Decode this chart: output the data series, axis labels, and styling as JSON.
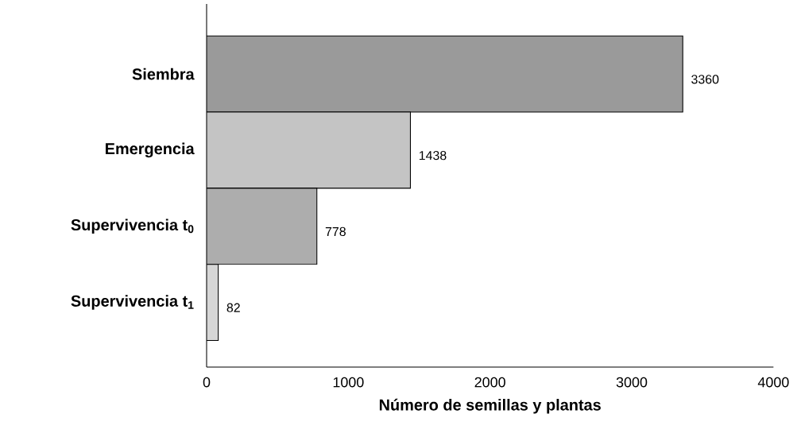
{
  "chart_data": {
    "type": "bar",
    "orientation": "horizontal",
    "xlabel": "Número de semillas y plantas",
    "categories": [
      "Siembra",
      "Emergencia",
      "Supervivencia t$_{0}$",
      "Supervivencia t$_{1}$"
    ],
    "values": [
      3360,
      1438,
      778,
      82
    ],
    "colors": [
      "#9a9a9a",
      "#c4c4c4",
      "#adadad",
      "#d6d6d6"
    ],
    "xlim": [
      0,
      4000
    ],
    "xticks": [
      0,
      1000,
      2000,
      3000,
      4000
    ],
    "data_labels": true
  }
}
